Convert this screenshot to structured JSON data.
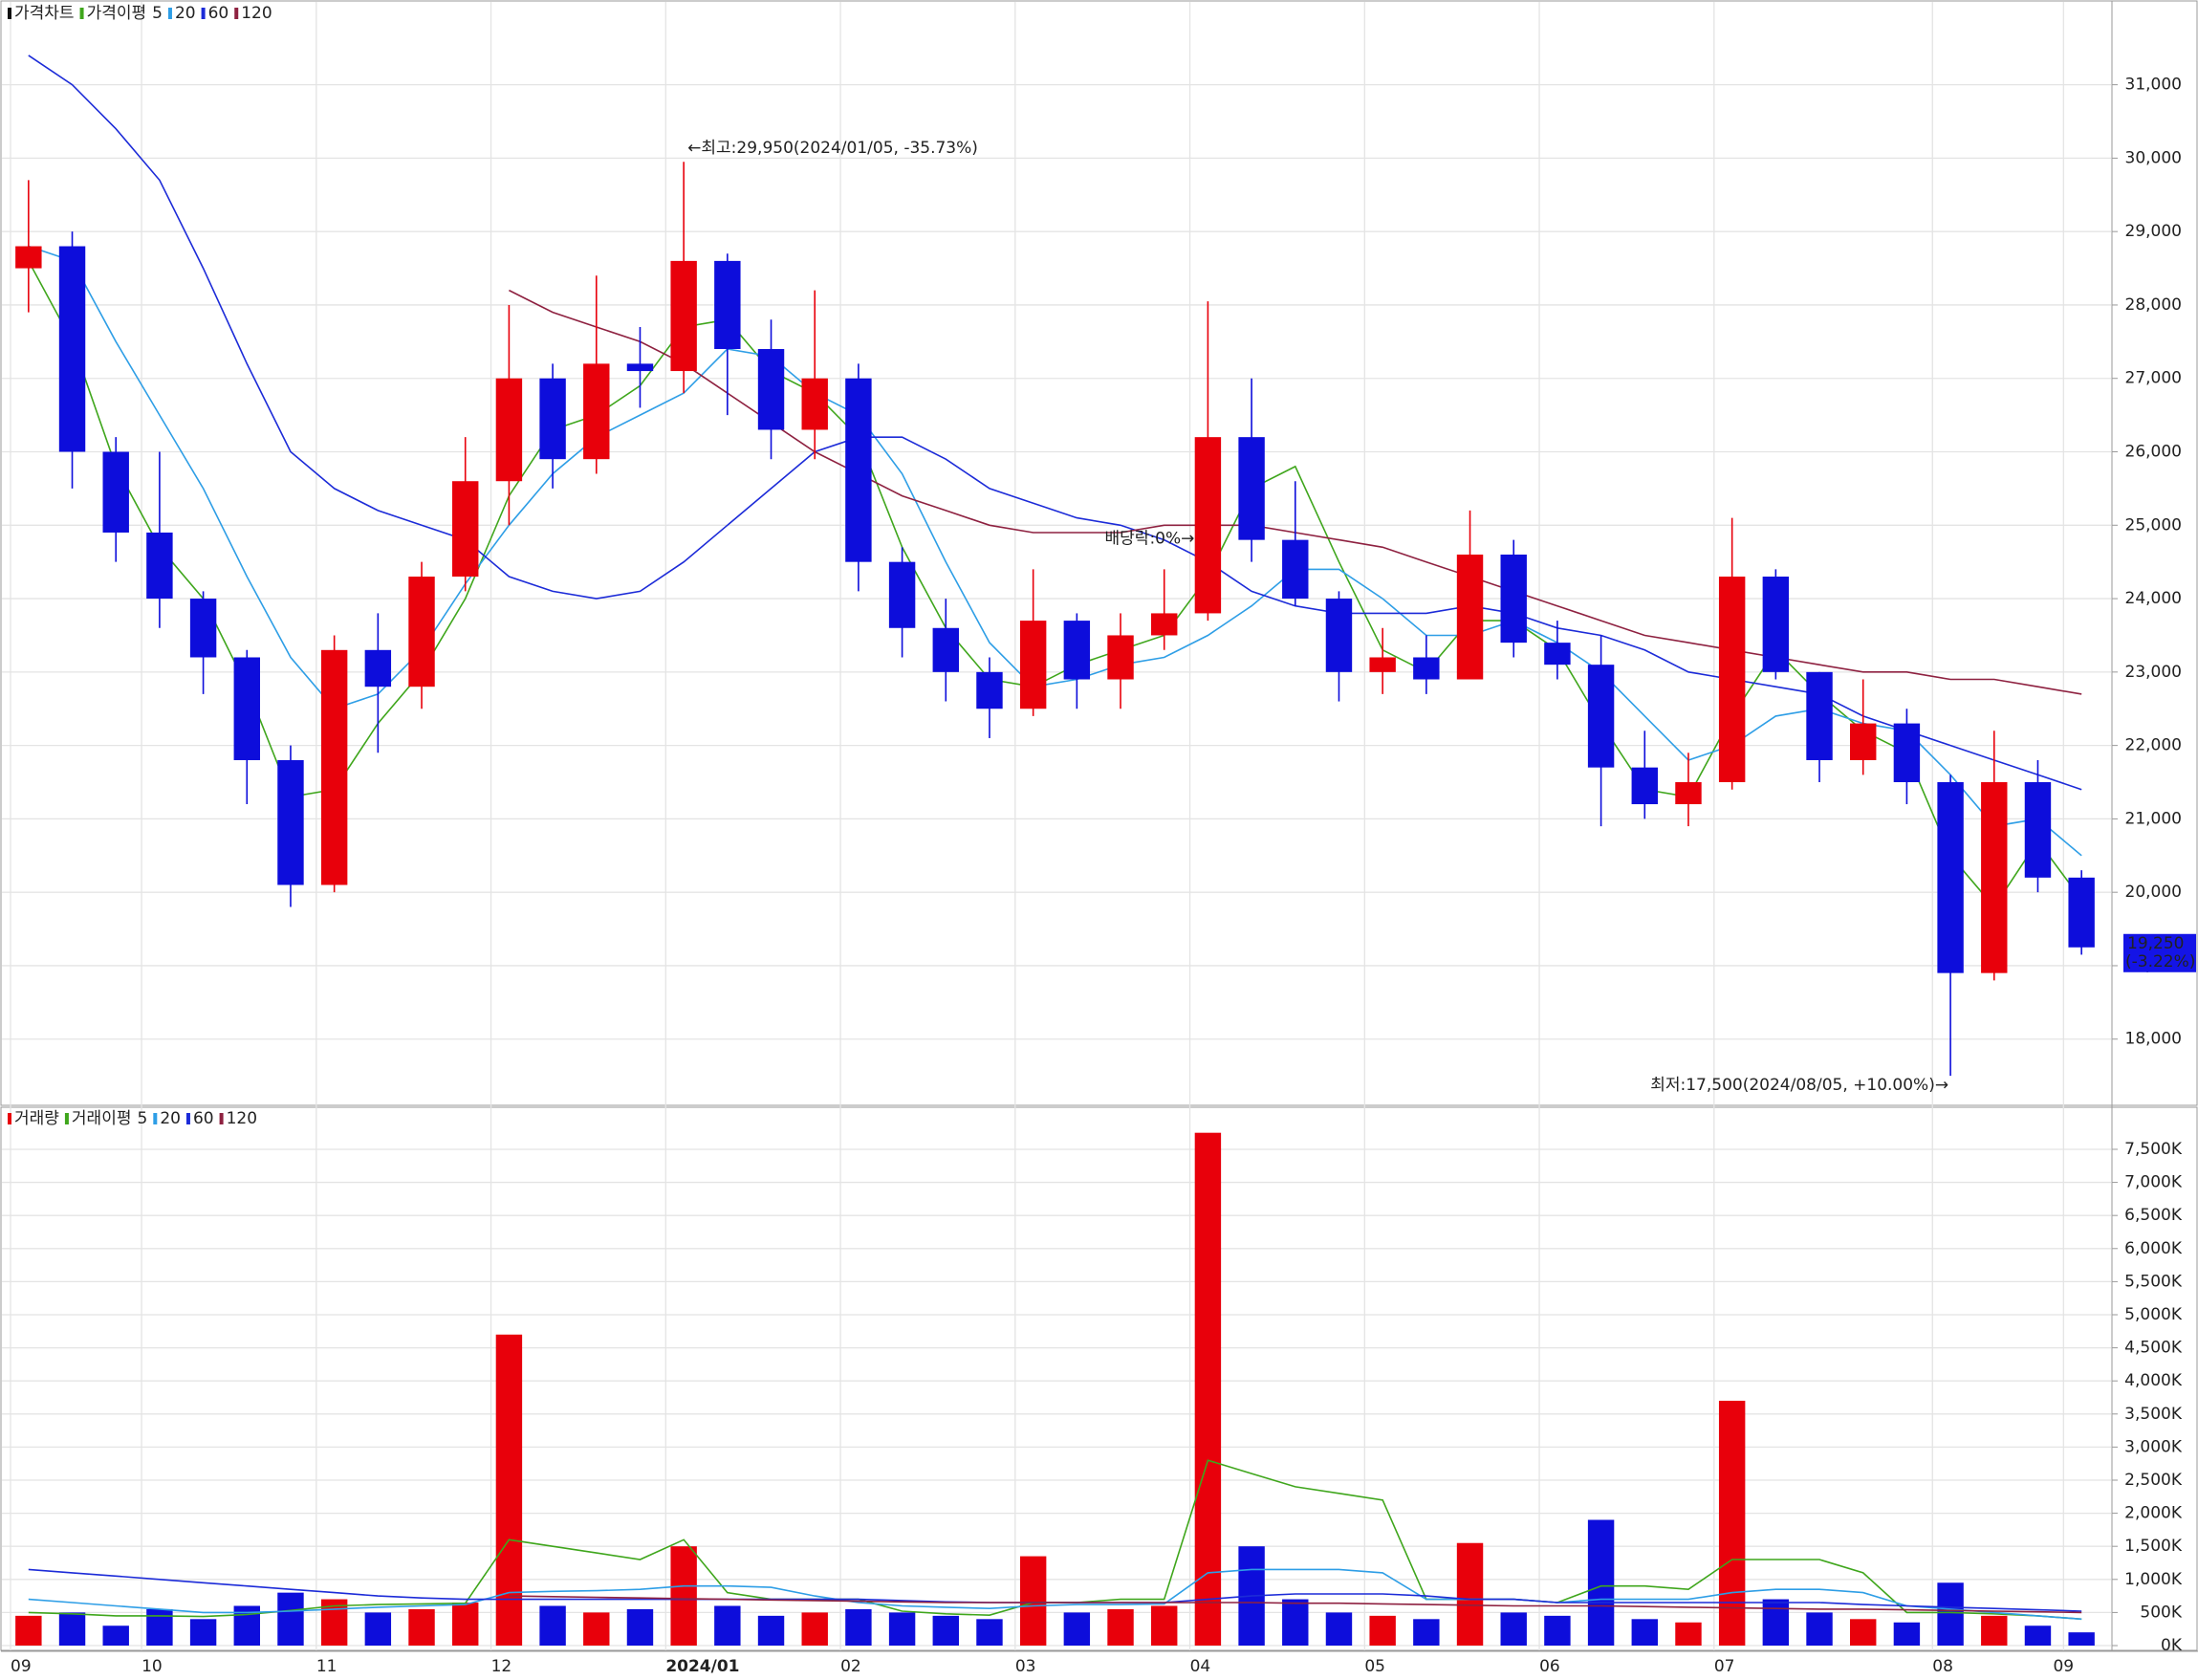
{
  "chart_data": [
    {
      "type": "candlestick",
      "title": "가격차트",
      "ma_title": "가격이평",
      "open": [
        28500,
        28800,
        26000,
        24900,
        24000,
        23200,
        21800,
        20100,
        23300,
        22800,
        24300,
        25600,
        27000,
        25900,
        27200,
        27100,
        28600,
        27400,
        26300,
        27000,
        24500,
        23600,
        23000,
        22500,
        23700,
        22900,
        23500,
        23800,
        26200,
        24800,
        24000,
        23000,
        23200,
        22900,
        24600,
        23400,
        23100,
        21700,
        21200,
        21500,
        24300,
        23000,
        21800,
        22300,
        21500,
        18900,
        21500,
        20200
      ],
      "high": [
        29700,
        29000,
        26200,
        26000,
        24100,
        23300,
        22000,
        23500,
        23800,
        24500,
        26200,
        28000,
        27200,
        28400,
        27700,
        29950,
        28700,
        27800,
        28200,
        27200,
        24700,
        24000,
        23200,
        24400,
        23800,
        23800,
        24400,
        28050,
        27000,
        25600,
        24100,
        23600,
        23500,
        25200,
        24800,
        23700,
        23500,
        22200,
        21900,
        25100,
        24400,
        23000,
        22900,
        22500,
        21600,
        22200,
        21800,
        20300
      ],
      "low": [
        27900,
        25500,
        24500,
        23600,
        22700,
        21200,
        19800,
        20000,
        21900,
        22500,
        24100,
        25000,
        25500,
        25700,
        26600,
        26800,
        26500,
        25900,
        25900,
        24100,
        23200,
        22600,
        22100,
        22400,
        22500,
        22500,
        23300,
        23700,
        24500,
        23900,
        22600,
        22700,
        22700,
        22900,
        23200,
        22900,
        20900,
        21000,
        20900,
        21400,
        22900,
        21500,
        21600,
        21200,
        17500,
        18800,
        20000,
        19150
      ],
      "close": [
        28800,
        26000,
        24900,
        24000,
        23200,
        21800,
        20100,
        23300,
        22800,
        24300,
        25600,
        27000,
        25900,
        27200,
        27100,
        28600,
        27400,
        26300,
        27000,
        24500,
        23600,
        23000,
        22500,
        23700,
        22900,
        23500,
        23800,
        26200,
        24800,
        24000,
        23000,
        23200,
        22900,
        24600,
        23400,
        23100,
        21700,
        21200,
        21500,
        24300,
        23000,
        21800,
        22300,
        21500,
        18900,
        21500,
        20200,
        19250
      ],
      "up_color": "#e8000b",
      "down_color": "#0d0ddb",
      "series": [
        {
          "name": "5",
          "color": "#3fa61c",
          "values": [
            28600,
            27500,
            25800,
            24700,
            24000,
            22800,
            21300,
            21400,
            22300,
            23000,
            24000,
            25400,
            26300,
            26500,
            26900,
            27700,
            27800,
            27100,
            26800,
            26200,
            24700,
            23600,
            22900,
            22800,
            23100,
            23300,
            23500,
            24300,
            25500,
            25800,
            24500,
            23300,
            23000,
            23700,
            23700,
            23300,
            22300,
            21400,
            21300,
            22400,
            23300,
            22700,
            22200,
            21900,
            20500,
            19800,
            20700,
            19900
          ]
        },
        {
          "name": "20",
          "color": "#2e9ee6",
          "values": [
            28800,
            28600,
            27500,
            26500,
            25500,
            24300,
            23200,
            22500,
            22700,
            23300,
            24200,
            25000,
            25700,
            26200,
            26500,
            26800,
            27400,
            27300,
            26800,
            26500,
            25700,
            24500,
            23400,
            22800,
            22900,
            23100,
            23200,
            23500,
            23900,
            24400,
            24400,
            24000,
            23500,
            23500,
            23700,
            23400,
            23000,
            22400,
            21800,
            22000,
            22400,
            22500,
            22300,
            22200,
            21600,
            20900,
            21000,
            20500
          ]
        },
        {
          "name": "60",
          "color": "#1c2bd8",
          "values": [
            31400,
            31000,
            30400,
            29700,
            28500,
            27200,
            26000,
            25500,
            25200,
            25000,
            24800,
            24300,
            24100,
            24000,
            24100,
            24500,
            25000,
            25500,
            26000,
            26200,
            26200,
            25900,
            25500,
            25300,
            25100,
            25000,
            24800,
            24500,
            24100,
            23900,
            23800,
            23800,
            23800,
            23900,
            23800,
            23600,
            23500,
            23300,
            23000,
            22900,
            22800,
            22700,
            22400,
            22200,
            22000,
            21800,
            21600,
            21400
          ]
        },
        {
          "name": "120",
          "color": "#8e2140",
          "values": [
            null,
            null,
            null,
            null,
            null,
            null,
            null,
            null,
            null,
            null,
            null,
            28200,
            27900,
            27700,
            27500,
            27200,
            26800,
            26400,
            26000,
            25700,
            25400,
            25200,
            25000,
            24900,
            24900,
            24900,
            25000,
            25000,
            25000,
            24900,
            24800,
            24700,
            24500,
            24300,
            24100,
            23900,
            23700,
            23500,
            23400,
            23300,
            23200,
            23100,
            23000,
            23000,
            22900,
            22900,
            22800,
            22700
          ]
        }
      ],
      "ylim": [
        17150,
        32050
      ],
      "yticks": [
        {
          "value": 18000,
          "label": "18,000"
        },
        {
          "value": 19000,
          "label": "19,000"
        },
        {
          "value": 20000,
          "label": "20,000"
        },
        {
          "value": 21000,
          "label": "21,000"
        },
        {
          "value": 22000,
          "label": "22,000"
        },
        {
          "value": 23000,
          "label": "23,000"
        },
        {
          "value": 24000,
          "label": "24,000"
        },
        {
          "value": 25000,
          "label": "25,000"
        },
        {
          "value": 26000,
          "label": "26,000"
        },
        {
          "value": 27000,
          "label": "27,000"
        },
        {
          "value": 28000,
          "label": "28,000"
        },
        {
          "value": 29000,
          "label": "29,000"
        },
        {
          "value": 30000,
          "label": "30,000"
        },
        {
          "value": 31000,
          "label": "31,000"
        }
      ],
      "grid": true,
      "annotations": {
        "high": "←최고:29,950(2024/01/05, -35.73%)",
        "low": "최저:17,500(2024/08/05, +10.00%)→",
        "dividend": "배당락:0%→"
      },
      "last_label": "19,250",
      "last_change_label": "(-3.22%)"
    },
    {
      "type": "bar",
      "title": "거래량",
      "ma_title": "거래이평",
      "categories": [
        "09",
        null,
        null,
        "10",
        null,
        null,
        null,
        "11",
        null,
        null,
        null,
        "12",
        null,
        null,
        null,
        "2024/01",
        null,
        null,
        null,
        "02",
        null,
        null,
        null,
        "03",
        null,
        null,
        null,
        "04",
        null,
        null,
        null,
        "05",
        null,
        null,
        null,
        "06",
        null,
        null,
        null,
        "07",
        null,
        null,
        null,
        null,
        "08",
        null,
        null,
        "09"
      ],
      "values": [
        450000,
        500000,
        300000,
        550000,
        400000,
        600000,
        800000,
        700000,
        500000,
        550000,
        650000,
        4700000,
        600000,
        500000,
        550000,
        1500000,
        600000,
        450000,
        500000,
        550000,
        500000,
        450000,
        400000,
        1350000,
        500000,
        550000,
        600000,
        7750000,
        1500000,
        700000,
        500000,
        450000,
        400000,
        1550000,
        500000,
        450000,
        1900000,
        400000,
        350000,
        3700000,
        700000,
        500000,
        400000,
        350000,
        950000,
        450000,
        300000,
        200000
      ],
      "series": [
        {
          "name": "5",
          "color": "#3fa61c",
          "values": [
            500000,
            480000,
            450000,
            450000,
            440000,
            470000,
            530000,
            600000,
            620000,
            630000,
            640000,
            1600000,
            1500000,
            1400000,
            1300000,
            1600000,
            800000,
            700000,
            700000,
            700000,
            520000,
            480000,
            460000,
            650000,
            650000,
            700000,
            700000,
            2800000,
            2600000,
            2400000,
            2300000,
            2200000,
            700000,
            700000,
            700000,
            650000,
            900000,
            900000,
            850000,
            1300000,
            1300000,
            1300000,
            1100000,
            500000,
            500000,
            480000,
            450000,
            400000
          ]
        },
        {
          "name": "20",
          "color": "#2e9ee6",
          "values": [
            700000,
            650000,
            600000,
            550000,
            500000,
            500000,
            520000,
            550000,
            580000,
            600000,
            620000,
            800000,
            820000,
            830000,
            850000,
            900000,
            900000,
            880000,
            750000,
            650000,
            600000,
            580000,
            560000,
            600000,
            620000,
            620000,
            630000,
            1100000,
            1150000,
            1150000,
            1150000,
            1100000,
            700000,
            700000,
            700000,
            650000,
            700000,
            700000,
            700000,
            800000,
            850000,
            850000,
            800000,
            600000,
            550000,
            500000,
            450000,
            400000
          ]
        },
        {
          "name": "60",
          "color": "#1c2bd8",
          "values": [
            1150000,
            1100000,
            1050000,
            1000000,
            950000,
            900000,
            850000,
            800000,
            750000,
            720000,
            700000,
            700000,
            700000,
            700000,
            700000,
            700000,
            700000,
            700000,
            700000,
            700000,
            680000,
            660000,
            650000,
            650000,
            650000,
            650000,
            650000,
            700000,
            750000,
            780000,
            780000,
            780000,
            750000,
            700000,
            700000,
            650000,
            650000,
            650000,
            650000,
            650000,
            650000,
            650000,
            620000,
            600000,
            580000,
            560000,
            540000,
            520000
          ]
        },
        {
          "name": "120",
          "color": "#8e2140",
          "values": [
            null,
            null,
            null,
            null,
            null,
            null,
            null,
            null,
            null,
            null,
            null,
            750000,
            740000,
            730000,
            720000,
            710000,
            700000,
            690000,
            680000,
            670000,
            660000,
            650000,
            650000,
            650000,
            650000,
            650000,
            650000,
            650000,
            650000,
            640000,
            640000,
            630000,
            620000,
            610000,
            600000,
            600000,
            600000,
            590000,
            580000,
            570000,
            560000,
            550000,
            550000,
            540000,
            530000,
            520000,
            510000,
            500000
          ]
        }
      ],
      "ylim": [
        0,
        8020000
      ],
      "yticks": [
        {
          "value": 0,
          "label": "0K"
        },
        {
          "value": 500000,
          "label": "500K"
        },
        {
          "value": 1000000,
          "label": "1,000K"
        },
        {
          "value": 1500000,
          "label": "1,500K"
        },
        {
          "value": 2000000,
          "label": "2,000K"
        },
        {
          "value": 2500000,
          "label": "2,500K"
        },
        {
          "value": 3000000,
          "label": "3,000K"
        },
        {
          "value": 3500000,
          "label": "3,500K"
        },
        {
          "value": 4000000,
          "label": "4,000K"
        },
        {
          "value": 4500000,
          "label": "4,500K"
        },
        {
          "value": 5000000,
          "label": "5,000K"
        },
        {
          "value": 5500000,
          "label": "5,500K"
        },
        {
          "value": 6000000,
          "label": "6,000K"
        },
        {
          "value": 6500000,
          "label": "6,500K"
        },
        {
          "value": 7000000,
          "label": "7,000K"
        },
        {
          "value": 7500000,
          "label": "7,500K"
        }
      ],
      "grid": true
    }
  ]
}
